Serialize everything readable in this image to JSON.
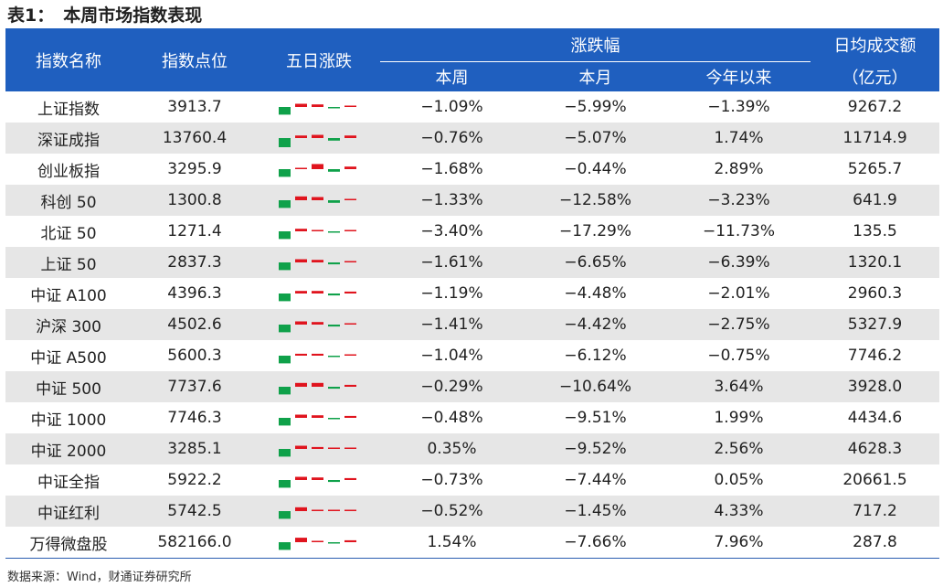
{
  "title": {
    "number": "表1：",
    "text": "本周市场指数表现"
  },
  "headers": {
    "name": "指数名称",
    "point": "指数点位",
    "five_day": "五日涨跌",
    "change_group": "涨跌幅",
    "week": "本周",
    "month": "本月",
    "ytd": "今年以来",
    "turnover_line1": "日均成交额",
    "turnover_line2": "（亿元）"
  },
  "colors": {
    "up": "#e0141e",
    "down": "#0fa14a",
    "header_bg": "#1f5fbf"
  },
  "rows": [
    {
      "name": "上证指数",
      "point": "3913.7",
      "week": "−1.09%",
      "month": "−5.99%",
      "ytd": "−1.39%",
      "turnover": "9267.2",
      "five_day": [
        -0.6,
        0.25,
        0.2,
        -0.1,
        0.1
      ]
    },
    {
      "name": "深证成指",
      "point": "13760.4",
      "week": "−0.76%",
      "month": "−5.07%",
      "ytd": "1.74%",
      "turnover": "11714.9",
      "five_day": [
        -0.8,
        0.2,
        0.25,
        -0.2,
        0.2
      ]
    },
    {
      "name": "创业板指",
      "point": "3295.9",
      "week": "−1.68%",
      "month": "−0.44%",
      "ytd": "2.89%",
      "turnover": "5265.7",
      "five_day": [
        -0.6,
        0.1,
        0.4,
        -0.2,
        0.2
      ]
    },
    {
      "name": "科创 50",
      "point": "1300.8",
      "week": "−1.33%",
      "month": "−12.58%",
      "ytd": "−3.23%",
      "turnover": "641.9",
      "five_day": [
        -0.6,
        0.3,
        0.25,
        -0.2,
        0.1
      ]
    },
    {
      "name": "北证 50",
      "point": "1271.4",
      "week": "−3.40%",
      "month": "−17.29%",
      "ytd": "−11.73%",
      "turnover": "135.5",
      "five_day": [
        -0.6,
        0.2,
        0.1,
        -0.1,
        0.05
      ]
    },
    {
      "name": "上证 50",
      "point": "2837.3",
      "week": "−1.61%",
      "month": "−6.65%",
      "ytd": "−6.39%",
      "turnover": "1320.1",
      "five_day": [
        -0.6,
        0.25,
        0.2,
        -0.15,
        0.1
      ]
    },
    {
      "name": "中证 A100",
      "point": "4396.3",
      "week": "−1.19%",
      "month": "−4.48%",
      "ytd": "−2.01%",
      "turnover": "2960.3",
      "five_day": [
        -0.6,
        0.2,
        0.2,
        -0.15,
        0.15
      ]
    },
    {
      "name": "沪深 300",
      "point": "4502.6",
      "week": "−1.41%",
      "month": "−4.42%",
      "ytd": "−2.75%",
      "turnover": "5327.9",
      "five_day": [
        -0.6,
        0.25,
        0.2,
        -0.15,
        0.1
      ]
    },
    {
      "name": "中证 A500",
      "point": "5600.3",
      "week": "−1.04%",
      "month": "−6.12%",
      "ytd": "−0.75%",
      "turnover": "7746.2",
      "five_day": [
        -0.6,
        0.15,
        0.15,
        -0.1,
        0.05
      ]
    },
    {
      "name": "中证 500",
      "point": "7737.6",
      "week": "−0.29%",
      "month": "−10.64%",
      "ytd": "3.64%",
      "turnover": "3928.0",
      "five_day": [
        -0.6,
        0.3,
        0.3,
        -0.15,
        0.15
      ]
    },
    {
      "name": "中证 1000",
      "point": "7746.3",
      "week": "−0.48%",
      "month": "−9.51%",
      "ytd": "1.99%",
      "turnover": "4434.6",
      "five_day": [
        -0.6,
        0.25,
        0.2,
        -0.05,
        0.15
      ]
    },
    {
      "name": "中证 2000",
      "point": "3285.1",
      "week": "0.35%",
      "month": "−9.52%",
      "ytd": "2.56%",
      "turnover": "4628.3",
      "five_day": [
        -0.6,
        0.25,
        0.15,
        0.1,
        0.1
      ]
    },
    {
      "name": "中证全指",
      "point": "5922.2",
      "week": "−0.73%",
      "month": "−7.44%",
      "ytd": "0.05%",
      "turnover": "20661.5",
      "five_day": [
        -0.6,
        0.25,
        0.2,
        -0.15,
        0.15
      ]
    },
    {
      "name": "中证红利",
      "point": "5742.5",
      "week": "−0.52%",
      "month": "−1.45%",
      "ytd": "4.33%",
      "turnover": "717.2",
      "five_day": [
        -0.6,
        0.3,
        0.1,
        0.1,
        0.1
      ]
    },
    {
      "name": "万得微盘股",
      "point": "582166.0",
      "week": "1.54%",
      "month": "−7.66%",
      "ytd": "7.96%",
      "turnover": "287.8",
      "five_day": [
        -0.6,
        0.35,
        0.1,
        -0.05,
        0.15
      ]
    }
  ],
  "source": "数据来源：Wind，财通证券研究所"
}
